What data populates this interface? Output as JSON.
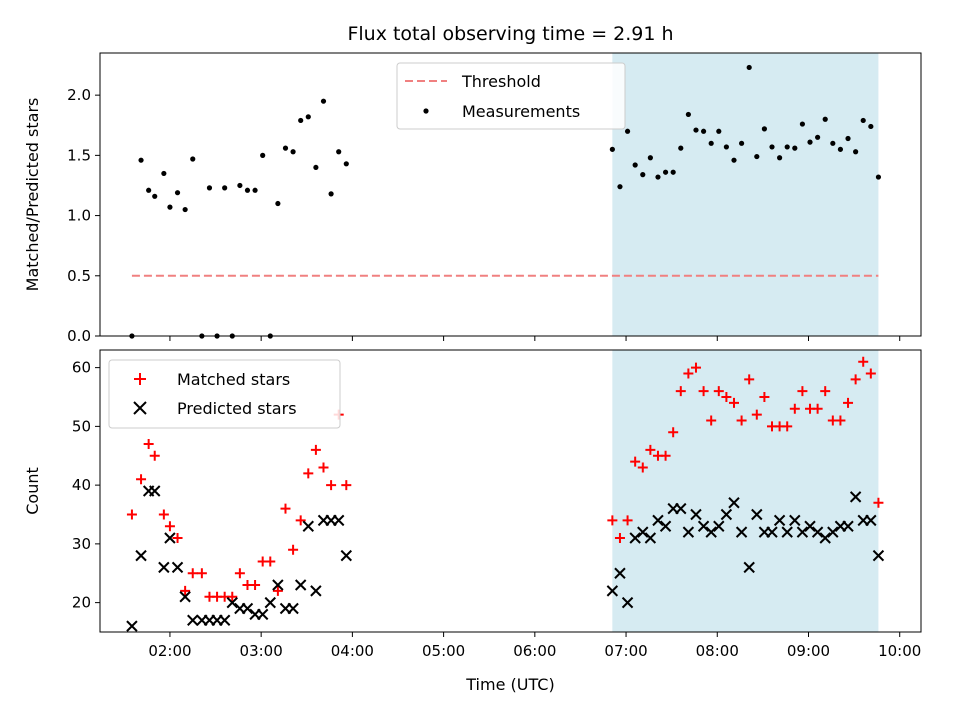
{
  "chart_data": [
    {
      "type": "scatter",
      "title": "Flux total observing time = 2.91 h",
      "ylabel": "Matched/Predicted stars",
      "xlim": [
        "01:14",
        "10:14"
      ],
      "ylim": [
        0,
        2.35
      ],
      "y_ticks": [
        "0.0",
        "0.5",
        "1.0",
        "1.5",
        "2.0"
      ],
      "y_tick_values": [
        0,
        0.5,
        1.0,
        1.5,
        2.0
      ],
      "shaded_region": {
        "x": [
          "06:51",
          "09:46"
        ],
        "color": "#add8e6"
      },
      "legend": {
        "position": "top-center",
        "entries": [
          "Threshold",
          "Measurements"
        ]
      },
      "series": [
        {
          "name": "Threshold",
          "style": "dashed-line",
          "color": "#f08080",
          "x": [
            "01:35",
            "09:46"
          ],
          "y": [
            0.5,
            0.5
          ]
        },
        {
          "name": "Measurements",
          "style": "dot",
          "color": "#000000",
          "x": [
            "01:35",
            "01:41",
            "01:46",
            "01:50",
            "01:56",
            "02:00",
            "02:05",
            "02:10",
            "02:15",
            "02:21",
            "02:26",
            "02:31",
            "02:36",
            "02:41",
            "02:46",
            "02:51",
            "02:56",
            "03:01",
            "03:06",
            "03:11",
            "03:16",
            "03:21",
            "03:26",
            "03:31",
            "03:36",
            "03:41",
            "03:46",
            "03:51",
            "03:56",
            "06:51",
            "06:56",
            "07:01",
            "07:06",
            "07:11",
            "07:16",
            "07:21",
            "07:26",
            "07:31",
            "07:36",
            "07:41",
            "07:46",
            "07:51",
            "07:56",
            "08:01",
            "08:06",
            "08:11",
            "08:16",
            "08:21",
            "08:26",
            "08:31",
            "08:36",
            "08:41",
            "08:46",
            "08:51",
            "08:56",
            "09:01",
            "09:06",
            "09:11",
            "09:16",
            "09:21",
            "09:26",
            "09:31",
            "09:36",
            "09:41",
            "09:46"
          ],
          "y": [
            0.0,
            1.46,
            1.21,
            1.16,
            1.35,
            1.07,
            1.19,
            1.05,
            1.47,
            0.0,
            1.23,
            0.0,
            1.23,
            0.0,
            1.25,
            1.21,
            1.21,
            1.5,
            0.0,
            1.1,
            1.56,
            1.53,
            1.79,
            1.82,
            1.4,
            1.95,
            1.18,
            1.53,
            1.43,
            1.55,
            1.24,
            1.7,
            1.42,
            1.34,
            1.48,
            1.32,
            1.36,
            1.36,
            1.56,
            1.84,
            1.71,
            1.7,
            1.6,
            1.7,
            1.57,
            1.46,
            1.6,
            2.23,
            1.49,
            1.72,
            1.57,
            1.48,
            1.57,
            1.56,
            1.76,
            1.61,
            1.65,
            1.8,
            1.6,
            1.55,
            1.64,
            1.53,
            1.79,
            1.74,
            1.32
          ]
        }
      ]
    },
    {
      "type": "scatter",
      "xlabel": "Time (UTC)",
      "ylabel": "Count",
      "xlim": [
        "01:14",
        "10:14"
      ],
      "ylim": [
        15,
        63
      ],
      "x_ticks": [
        "02:00",
        "03:00",
        "04:00",
        "05:00",
        "06:00",
        "07:00",
        "08:00",
        "09:00",
        "10:00"
      ],
      "y_ticks": [
        "20",
        "30",
        "40",
        "50",
        "60"
      ],
      "y_tick_values": [
        20,
        30,
        40,
        50,
        60
      ],
      "shaded_region": {
        "x": [
          "06:51",
          "09:46"
        ],
        "color": "#add8e6"
      },
      "legend": {
        "position": "top-left",
        "entries": [
          "Matched stars",
          "Predicted stars"
        ]
      },
      "series": [
        {
          "name": "Matched stars",
          "marker": "plus",
          "color": "#ff0000",
          "x": [
            "01:35",
            "01:41",
            "01:46",
            "01:50",
            "01:56",
            "02:00",
            "02:05",
            "02:10",
            "02:15",
            "02:21",
            "02:26",
            "02:31",
            "02:36",
            "02:41",
            "02:46",
            "02:51",
            "02:56",
            "03:01",
            "03:06",
            "03:11",
            "03:16",
            "03:21",
            "03:26",
            "03:31",
            "03:36",
            "03:41",
            "03:46",
            "03:51",
            "03:56",
            "06:51",
            "06:56",
            "07:01",
            "07:06",
            "07:11",
            "07:16",
            "07:21",
            "07:26",
            "07:31",
            "07:36",
            "07:41",
            "07:46",
            "07:51",
            "07:56",
            "08:01",
            "08:06",
            "08:11",
            "08:16",
            "08:21",
            "08:26",
            "08:31",
            "08:36",
            "08:41",
            "08:46",
            "08:51",
            "08:56",
            "09:01",
            "09:06",
            "09:11",
            "09:16",
            "09:21",
            "09:26",
            "09:31",
            "09:36",
            "09:41",
            "09:46"
          ],
          "y": [
            35,
            41,
            47,
            45,
            35,
            33,
            31,
            22,
            25,
            25,
            21,
            21,
            21,
            21,
            25,
            23,
            23,
            27,
            27,
            22,
            36,
            29,
            34,
            42,
            46,
            43,
            40,
            52,
            40,
            34,
            31,
            34,
            44,
            43,
            46,
            45,
            45,
            49,
            56,
            59,
            60,
            56,
            51,
            56,
            55,
            54,
            51,
            58,
            52,
            55,
            50,
            50,
            50,
            53,
            56,
            53,
            53,
            56,
            51,
            51,
            54,
            58,
            61,
            59,
            37
          ]
        },
        {
          "name": "Predicted stars",
          "marker": "x",
          "color": "#000000",
          "x": [
            "01:35",
            "01:41",
            "01:46",
            "01:50",
            "01:56",
            "02:00",
            "02:05",
            "02:10",
            "02:15",
            "02:21",
            "02:26",
            "02:31",
            "02:36",
            "02:41",
            "02:46",
            "02:51",
            "02:56",
            "03:01",
            "03:06",
            "03:11",
            "03:16",
            "03:21",
            "03:26",
            "03:31",
            "03:36",
            "03:41",
            "03:46",
            "03:51",
            "03:56",
            "06:51",
            "06:56",
            "07:01",
            "07:06",
            "07:11",
            "07:16",
            "07:21",
            "07:26",
            "07:31",
            "07:36",
            "07:41",
            "07:46",
            "07:51",
            "07:56",
            "08:01",
            "08:06",
            "08:11",
            "08:16",
            "08:21",
            "08:26",
            "08:31",
            "08:36",
            "08:41",
            "08:46",
            "08:51",
            "08:56",
            "09:01",
            "09:06",
            "09:11",
            "09:16",
            "09:21",
            "09:26",
            "09:31",
            "09:36",
            "09:41",
            "09:46"
          ],
          "y": [
            16,
            28,
            39,
            39,
            26,
            31,
            26,
            21,
            17,
            17,
            17,
            17,
            17,
            20,
            19,
            19,
            18,
            18,
            20,
            23,
            19,
            19,
            23,
            33,
            22,
            34,
            34,
            34,
            28,
            22,
            25,
            20,
            31,
            32,
            31,
            34,
            33,
            36,
            36,
            32,
            35,
            33,
            32,
            33,
            35,
            37,
            32,
            26,
            35,
            32,
            32,
            34,
            32,
            34,
            32,
            33,
            32,
            31,
            32,
            33,
            33,
            38,
            34,
            34,
            28
          ]
        }
      ]
    }
  ]
}
